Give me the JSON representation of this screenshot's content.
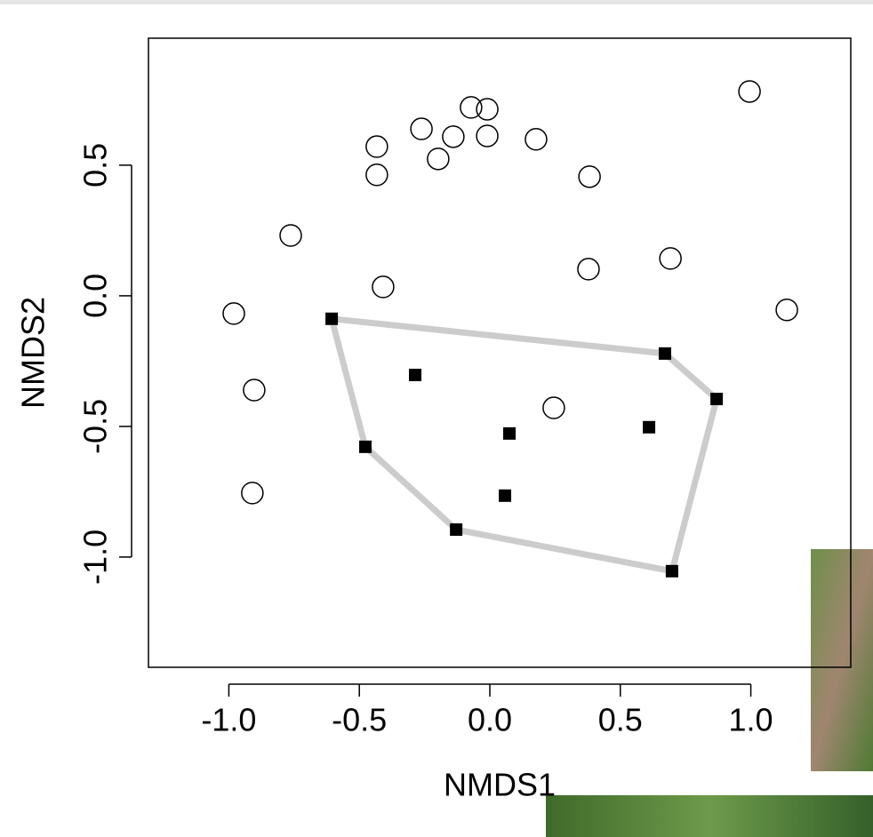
{
  "chart_data": {
    "type": "scatter",
    "xlabel": "NMDS1",
    "ylabel": "NMDS2",
    "xlim": [
      -1.308,
      1.383
    ],
    "ylim": [
      -1.422,
      0.986
    ],
    "xticks": [
      {
        "value": -1,
        "label": "-1.0"
      },
      -0.5,
      {
        "value": 0,
        "label": "0.0"
      },
      0.5,
      {
        "value": 1,
        "label": "1.0"
      }
    ],
    "yticks": [
      {
        "value": -1,
        "label": "-1.0"
      },
      -0.5,
      {
        "value": 0,
        "label": "0.0"
      },
      0.5
    ],
    "hull_color": "#cccccc",
    "series": [
      {
        "marker": "circle",
        "color": "#000000",
        "x": [
          -0.981,
          -0.903,
          -0.91,
          -0.763,
          -0.433,
          -0.433,
          -0.409,
          -0.262,
          -0.198,
          -0.14,
          -0.072,
          -0.01,
          -0.01,
          0.177,
          0.382,
          0.378,
          0.245,
          0.692,
          0.995,
          1.138
        ],
        "values": [
          -0.068,
          -0.361,
          -0.755,
          0.231,
          0.571,
          0.463,
          0.034,
          0.639,
          0.524,
          0.609,
          0.721,
          0.714,
          0.612,
          0.599,
          0.456,
          0.102,
          -0.429,
          0.143,
          0.782,
          -0.054
        ]
      },
      {
        "marker": "square",
        "color": "#000000",
        "hull": true,
        "x": [
          -0.606,
          -0.286,
          -0.477,
          -0.129,
          0.075,
          0.058,
          0.61,
          0.671,
          0.869,
          0.698
        ],
        "values": [
          -0.088,
          -0.303,
          -0.578,
          -0.895,
          -0.527,
          -0.765,
          -0.503,
          -0.221,
          -0.395,
          -1.054
        ]
      }
    ]
  }
}
